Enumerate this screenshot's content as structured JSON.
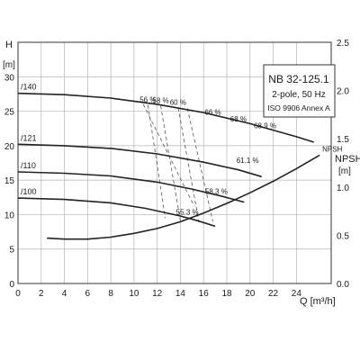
{
  "chart_data": {
    "type": "line",
    "title": "NB 32-125.1",
    "subtitle": "2-pole, 50 Hz",
    "standard": "ISO 9906 Annex A",
    "xlabel": "Q [m³/h]",
    "ylabel_left": "H",
    "ylabel_left_unit": "[m]",
    "ylabel_right": "NPSH",
    "ylabel_right_unit": "[m]",
    "xlim": [
      0,
      27
    ],
    "ylim_left": [
      0,
      35
    ],
    "ylim_right": [
      0,
      2.5
    ],
    "x_ticks": [
      "0",
      "2",
      "4",
      "6",
      "8",
      "10",
      "12",
      "14",
      "16",
      "18",
      "20",
      "22",
      "24"
    ],
    "y_ticks_left": [
      "0",
      "5",
      "10",
      "15",
      "20",
      "25",
      "30"
    ],
    "y_ticks_right": [
      "0.0",
      "0.5",
      "1.0",
      "1.5",
      "2.0",
      "2.5"
    ],
    "grid": true,
    "head_series": [
      {
        "name": "/140",
        "x": [
          0,
          4,
          8,
          12,
          16,
          20,
          24,
          25.5
        ],
        "y": [
          27.6,
          27.4,
          26.9,
          26.0,
          24.8,
          23.2,
          21.3,
          20.5
        ]
      },
      {
        "name": "/121",
        "x": [
          0,
          4,
          8,
          12,
          16,
          19,
          21
        ],
        "y": [
          20.2,
          20.0,
          19.6,
          18.8,
          17.6,
          16.5,
          15.5
        ]
      },
      {
        "name": "/110",
        "x": [
          0,
          4,
          8,
          12,
          15,
          17.5,
          19.5
        ],
        "y": [
          16.2,
          16.0,
          15.6,
          14.7,
          13.7,
          12.7,
          11.8
        ]
      },
      {
        "name": "/100",
        "x": [
          0,
          4,
          8,
          11,
          14,
          15.5,
          17
        ],
        "y": [
          12.4,
          12.2,
          11.7,
          10.9,
          9.8,
          9.1,
          8.3
        ]
      }
    ],
    "npsh_series": {
      "name": "NPSH",
      "x": [
        2.5,
        4,
        6,
        8,
        10,
        12,
        14,
        16,
        18,
        20,
        22,
        24,
        26
      ],
      "y": [
        0.47,
        0.46,
        0.46,
        0.48,
        0.52,
        0.57,
        0.64,
        0.73,
        0.83,
        0.94,
        1.06,
        1.19,
        1.33
      ]
    },
    "efficiency_lines": [
      {
        "label": "56 %",
        "x": [
          11.2,
          12.7
        ],
        "y": [
          25.9,
          9.5
        ]
      },
      {
        "label": "58 %",
        "x": [
          12.3,
          14.0
        ],
        "y": [
          25.8,
          9.1
        ]
      },
      {
        "label": "60 %",
        "x": [
          13.8,
          15.6
        ],
        "y": [
          25.5,
          8.9
        ]
      },
      {
        "label": "66 %",
        "x": [
          16.8
        ],
        "y": [
          24.5
        ]
      },
      {
        "label": "68 %",
        "x": [
          19.0
        ],
        "y": [
          23.5
        ]
      },
      {
        "label": "68.9 %",
        "x": [
          21.3
        ],
        "y": [
          22.5
        ]
      },
      {
        "label": "61.1 %",
        "x": [
          19.8
        ],
        "y": [
          17.5
        ]
      },
      {
        "label": "58.3 %",
        "x": [
          17.1
        ],
        "y": [
          13.0
        ]
      },
      {
        "label": "55.3 %",
        "x": [
          14.6
        ],
        "y": [
          10.0
        ]
      }
    ]
  }
}
